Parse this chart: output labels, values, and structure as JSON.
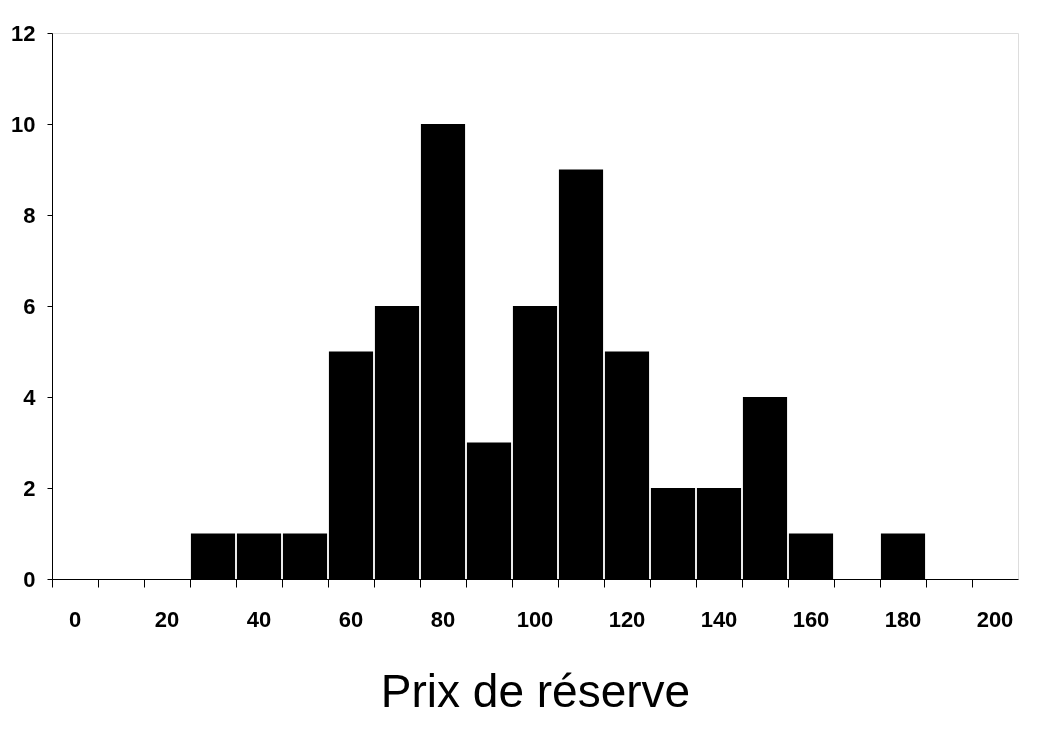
{
  "chart_data": {
    "type": "bar",
    "xlabel": "Prix de réserve",
    "categories": [
      "0",
      null,
      "20",
      null,
      "40",
      null,
      "60",
      null,
      "80",
      null,
      "100",
      null,
      "120",
      null,
      "140",
      null,
      "160",
      null,
      "180",
      null,
      "200"
    ],
    "values": [
      0,
      0,
      0,
      1,
      1,
      1,
      5,
      6,
      10,
      3,
      6,
      9,
      5,
      2,
      2,
      4,
      1,
      0,
      1,
      0,
      0
    ],
    "color": "#000000",
    "ylim": [
      0,
      12
    ],
    "yticks": [
      0,
      2,
      4,
      6,
      8,
      10,
      12
    ],
    "grid": false
  }
}
